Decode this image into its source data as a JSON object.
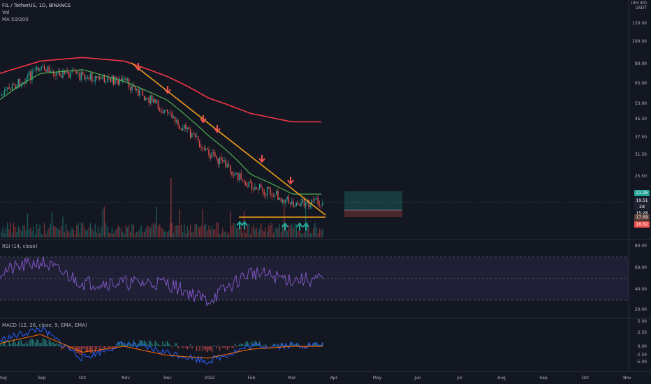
{
  "header": {
    "title": "FIL / TetherUS, 1D, BINANCE",
    "vol": "Vol",
    "ma": "MA 50/200",
    "unit_line1": "(4H 40)",
    "unit_line2": "USDT"
  },
  "rsi_label": "RSI (14, close)",
  "macd_label": "MACD (12, 26, close, 9, EMA, EMA)",
  "price_axis_ticks": [
    "120.00",
    "100.00",
    "80.00",
    "65.00",
    "53.00",
    "45.50",
    "37.50",
    "31.50",
    "25.50"
  ],
  "price_tags": [
    {
      "text": "21.26",
      "color": "#26a69a"
    },
    {
      "text": "19.51",
      "color": "#1e2130"
    },
    {
      "text": "2d 15:28",
      "color": "#1e2130"
    },
    {
      "text": "17.69",
      "color": "#5d4037"
    },
    {
      "text": "16.62",
      "color": "#ef5350"
    }
  ],
  "rsi_ticks": [
    "80.00",
    "60.00",
    "40.00",
    "20.00"
  ],
  "macd_ticks": [
    "5.00",
    "2.50",
    "0.00",
    "-2.50",
    "-5.00"
  ],
  "time_axis": [
    "Aug",
    "Sep",
    "Oct",
    "Nov",
    "Dec",
    "2022",
    "Feb",
    "Mar",
    "Apr",
    "May",
    "Jun",
    "Jul",
    "Aug",
    "Sep",
    "Oct",
    "Nov"
  ],
  "colors": {
    "bg": "#131722",
    "up": "#26a69a",
    "down": "#ef5350",
    "ma50": "#4caf50",
    "ma200": "#f23645",
    "trend": "#f7a21b",
    "rsi": "#7e57c2",
    "macd": "#2962ff",
    "signal": "#ff6d00"
  },
  "chart_data": [
    {
      "type": "line",
      "title": "FIL / TetherUS, 1D, BINANCE",
      "x": [
        "Aug",
        "Sep",
        "Oct",
        "Nov",
        "Dec",
        "2022",
        "Feb",
        "Mar"
      ],
      "series": [
        {
          "name": "Price",
          "values": [
            57,
            75,
            70,
            66,
            48,
            32,
            23,
            19.5
          ]
        },
        {
          "name": "MA 50",
          "values": [
            55,
            72,
            75,
            66,
            55,
            38,
            26,
            21
          ]
        },
        {
          "name": "MA 200",
          "values": [
            72,
            82,
            85,
            82,
            70,
            56,
            48,
            44
          ]
        }
      ],
      "annotations": {
        "trendline": "descending resistance from Nov to Mar",
        "support": "flat support near 17.69",
        "red_arrows": 7,
        "green_arrows": 5
      }
    },
    {
      "type": "line",
      "title": "RSI (14, close)",
      "x": [
        "Aug",
        "Sep",
        "Oct",
        "Nov",
        "Dec",
        "2022",
        "Feb",
        "Mar"
      ],
      "series": [
        {
          "name": "RSI",
          "values": [
            55,
            65,
            45,
            45,
            45,
            28,
            55,
            48
          ]
        }
      ],
      "ylim": [
        20,
        80
      ]
    },
    {
      "type": "bar",
      "title": "MACD (12, 26, close, 9, EMA, EMA)",
      "x": [
        "Aug",
        "Sep",
        "Oct",
        "Nov",
        "Dec",
        "2022",
        "Feb",
        "Mar"
      ],
      "series": [
        {
          "name": "MACD",
          "values": [
            1,
            3,
            -2,
            0.5,
            -1,
            -2.5,
            0,
            0.2
          ]
        },
        {
          "name": "Signal",
          "values": [
            0.5,
            2,
            -1,
            0,
            -1.5,
            -2,
            -0.5,
            0
          ]
        }
      ],
      "ylim": [
        -5,
        5
      ]
    }
  ]
}
